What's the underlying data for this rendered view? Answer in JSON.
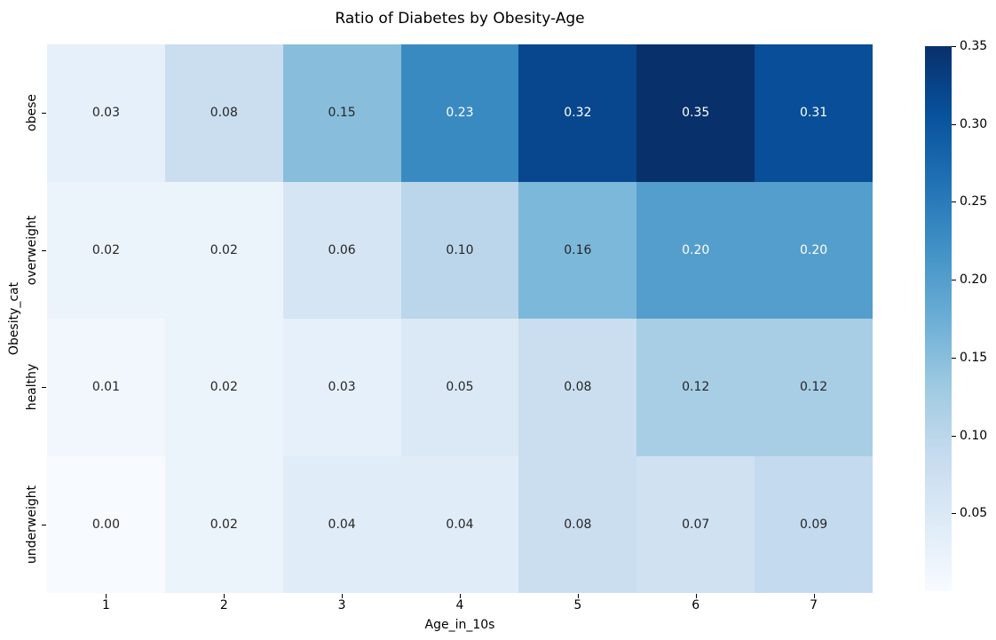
{
  "chart_data": {
    "type": "heatmap",
    "title": "Ratio of Diabetes by Obesity-Age",
    "xlabel": "Age_in_10s",
    "ylabel": "Obesity_cat",
    "x_categories": [
      "1",
      "2",
      "3",
      "4",
      "5",
      "6",
      "7"
    ],
    "y_categories": [
      "obese",
      "overweight",
      "healthy",
      "underweight"
    ],
    "values": [
      [
        0.03,
        0.08,
        0.15,
        0.23,
        0.32,
        0.35,
        0.31
      ],
      [
        0.02,
        0.02,
        0.06,
        0.1,
        0.16,
        0.2,
        0.2
      ],
      [
        0.01,
        0.02,
        0.03,
        0.05,
        0.08,
        0.12,
        0.12
      ],
      [
        0.0,
        0.02,
        0.04,
        0.04,
        0.08,
        0.07,
        0.09
      ]
    ],
    "annotation_decimals": 2,
    "vmin": 0,
    "vmax": 0.35,
    "colormap": {
      "name": "Blues",
      "stops": [
        "#f7fbff",
        "#deebf7",
        "#c6dbef",
        "#9ecae1",
        "#6baed6",
        "#4292c6",
        "#2171b5",
        "#08519c",
        "#08306b"
      ]
    },
    "annotation_colors": {
      "on_dark": "#ffffff",
      "on_light": "#262626"
    },
    "colorbar": {
      "position": "right",
      "tick_labels": [
        "0.35",
        "0.30",
        "0.25",
        "0.20",
        "0.15",
        "0.10",
        "0.05"
      ]
    },
    "grid": false,
    "legend_position": "none"
  }
}
